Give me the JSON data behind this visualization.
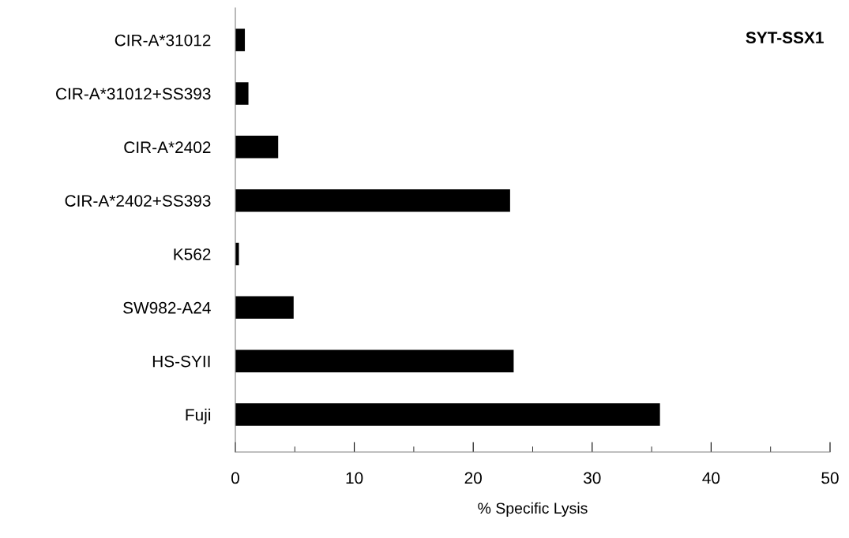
{
  "chart_data": {
    "type": "bar",
    "orientation": "horizontal",
    "title": "SYT-SSX1",
    "xlabel": "% Specific Lysis",
    "categories": [
      "CIR-A*31012",
      "CIR-A*31012+SS393",
      "CIR-A*2402",
      "CIR-A*2402+SS393",
      "K562",
      "SW982-A24",
      "HS-SYII",
      "Fuji"
    ],
    "values": [
      0.8,
      1.1,
      3.6,
      23.1,
      0.3,
      4.9,
      23.4,
      35.7
    ],
    "color": "#000000",
    "xlim": [
      0,
      50
    ],
    "xticks": [
      0,
      {
        "value": 5,
        "label": null
      },
      10,
      {
        "value": 15,
        "label": null
      },
      20,
      {
        "value": 25,
        "label": null
      },
      30,
      {
        "value": 35,
        "label": null
      },
      40,
      {
        "value": 45,
        "label": null
      },
      50
    ],
    "grid": false,
    "legend": false
  }
}
